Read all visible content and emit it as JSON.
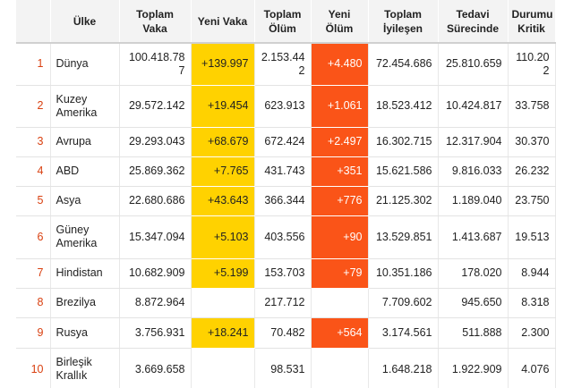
{
  "colors": {
    "header_bg": "#f3f3f3",
    "index_text": "#d94010",
    "new_cases_bg": "#ffd200",
    "new_deaths_bg": "#fa5418",
    "new_deaths_text": "#ffffff"
  },
  "headers": {
    "ulke": "Ülke",
    "toplam_vaka": "Toplam Vaka",
    "yeni_vaka": "Yeni Vaka",
    "toplam_olum": "Toplam Ölüm",
    "yeni_olum": "Yeni Ölüm",
    "toplam_iyilesen": "Toplam İyileşen",
    "tedavi_surecinde": "Tedavi Sürecinde",
    "durumu_kritik": "Durumu Kritik"
  },
  "rows": [
    {
      "idx": "1",
      "ulke": "Dünya",
      "toplam_vaka": "100.418.787",
      "yeni_vaka": "+139.997",
      "toplam_olum": "2.153.442",
      "yeni_olum": "+4.480",
      "toplam_iyilesen": "72.454.686",
      "tedavi_surecinde": "25.810.659",
      "durumu_kritik": "110.202"
    },
    {
      "idx": "2",
      "ulke": "Kuzey Amerika",
      "toplam_vaka": "29.572.142",
      "yeni_vaka": "+19.454",
      "toplam_olum": "623.913",
      "yeni_olum": "+1.061",
      "toplam_iyilesen": "18.523.412",
      "tedavi_surecinde": "10.424.817",
      "durumu_kritik": "33.758"
    },
    {
      "idx": "3",
      "ulke": "Avrupa",
      "toplam_vaka": "29.293.043",
      "yeni_vaka": "+68.679",
      "toplam_olum": "672.424",
      "yeni_olum": "+2.497",
      "toplam_iyilesen": "16.302.715",
      "tedavi_surecinde": "12.317.904",
      "durumu_kritik": "30.370"
    },
    {
      "idx": "4",
      "ulke": "ABD",
      "toplam_vaka": "25.869.362",
      "yeni_vaka": "+7.765",
      "toplam_olum": "431.743",
      "yeni_olum": "+351",
      "toplam_iyilesen": "15.621.586",
      "tedavi_surecinde": "9.816.033",
      "durumu_kritik": "26.232"
    },
    {
      "idx": "5",
      "ulke": "Asya",
      "toplam_vaka": "22.680.686",
      "yeni_vaka": "+43.643",
      "toplam_olum": "366.344",
      "yeni_olum": "+776",
      "toplam_iyilesen": "21.125.302",
      "tedavi_surecinde": "1.189.040",
      "durumu_kritik": "23.750"
    },
    {
      "idx": "6",
      "ulke": "Güney Amerika",
      "toplam_vaka": "15.347.094",
      "yeni_vaka": "+5.103",
      "toplam_olum": "403.556",
      "yeni_olum": "+90",
      "toplam_iyilesen": "13.529.851",
      "tedavi_surecinde": "1.413.687",
      "durumu_kritik": "19.513"
    },
    {
      "idx": "7",
      "ulke": "Hindistan",
      "toplam_vaka": "10.682.909",
      "yeni_vaka": "+5.199",
      "toplam_olum": "153.703",
      "yeni_olum": "+79",
      "toplam_iyilesen": "10.351.186",
      "tedavi_surecinde": "178.020",
      "durumu_kritik": "8.944"
    },
    {
      "idx": "8",
      "ulke": "Brezilya",
      "toplam_vaka": "8.872.964",
      "yeni_vaka": "",
      "toplam_olum": "217.712",
      "yeni_olum": "",
      "toplam_iyilesen": "7.709.602",
      "tedavi_surecinde": "945.650",
      "durumu_kritik": "8.318"
    },
    {
      "idx": "9",
      "ulke": "Rusya",
      "toplam_vaka": "3.756.931",
      "yeni_vaka": "+18.241",
      "toplam_olum": "70.482",
      "yeni_olum": "+564",
      "toplam_iyilesen": "3.174.561",
      "tedavi_surecinde": "511.888",
      "durumu_kritik": "2.300"
    },
    {
      "idx": "10",
      "ulke": "Birleşik Krallık",
      "toplam_vaka": "3.669.658",
      "yeni_vaka": "",
      "toplam_olum": "98.531",
      "yeni_olum": "",
      "toplam_iyilesen": "1.648.218",
      "tedavi_surecinde": "1.922.909",
      "durumu_kritik": "4.076"
    }
  ]
}
